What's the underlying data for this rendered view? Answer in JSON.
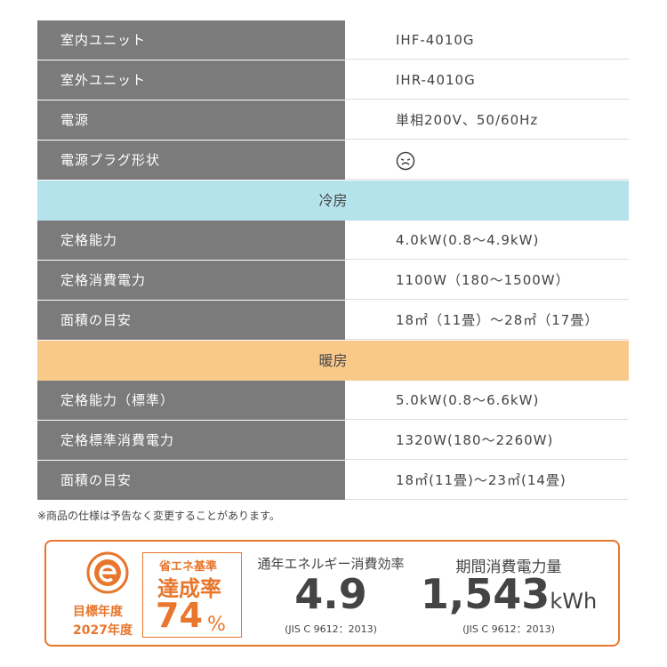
{
  "spec_table": {
    "rows": [
      {
        "label": "室内ユニット",
        "value": "IHF-4010G"
      },
      {
        "label": "室外ユニット",
        "value": "IHR-4010G"
      },
      {
        "label": "電源",
        "value": "単相200V、50/60Hz"
      },
      {
        "label": "電源プラグ形状"
      },
      {
        "section": "冷房",
        "kind": "cool"
      },
      {
        "label": "定格能力",
        "value": "4.0kW(0.8～4.9kW)"
      },
      {
        "label": "定格消費電力",
        "value": "1100W（180～1500W）"
      },
      {
        "label": "面積の目安",
        "value": "18㎡（11畳）～28㎡（17畳）"
      },
      {
        "section": "暖房",
        "kind": "heat"
      },
      {
        "label": "定格能力（標準）",
        "value": "5.0kW(0.8～6.6kW)"
      },
      {
        "label": "定格標準消費電力",
        "value": "1320W(180～2260W)"
      },
      {
        "label": "面積の目安",
        "value": "18㎡(11畳)～23㎡(14畳)"
      }
    ]
  },
  "note": "※商品の仕様は予告なく変更することがあります。",
  "energy_box": {
    "target_year_label": "目標年度",
    "target_year": "2027年度",
    "achievement": {
      "label_top": "省エネ基準",
      "label": "達成率",
      "value": "74",
      "unit": "%"
    },
    "efficiency": {
      "label": "通年エネルギー消費効率",
      "value": "4.9",
      "standard": "(JIS C 9612：2013)"
    },
    "consumption": {
      "label": "期間消費電力量",
      "value": "1,543",
      "unit": "kWh",
      "standard": "(JIS C 9612：2013)"
    }
  }
}
